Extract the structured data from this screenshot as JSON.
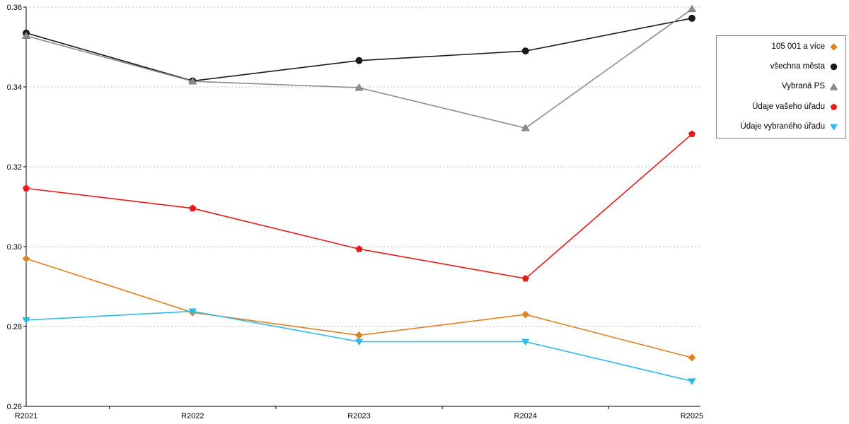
{
  "chart_data": {
    "type": "line",
    "title": "",
    "xlabel": "",
    "ylabel": "",
    "categories": [
      "R2021",
      "R2022",
      "R2023",
      "R2024",
      "R2025"
    ],
    "series": [
      {
        "name": "105 001 a více",
        "marker": "diamond",
        "color": "#E08122",
        "values": [
          0.297,
          0.2835,
          0.2778,
          0.283,
          0.2722
        ]
      },
      {
        "name": "všechna města",
        "marker": "circle",
        "color": "#1A1A1A",
        "values": [
          0.3535,
          0.3415,
          0.3466,
          0.349,
          0.3572
        ]
      },
      {
        "name": "Vybraná PS",
        "marker": "triangle-up",
        "color": "#8C8C8C",
        "values": [
          0.3528,
          0.3414,
          0.3398,
          0.3297,
          0.3595
        ]
      },
      {
        "name": "Údaje vašeho úřadu",
        "marker": "pentagon",
        "color": "#E8191C",
        "values": [
          0.3146,
          0.3096,
          0.2994,
          0.292,
          0.3282
        ]
      },
      {
        "name": "Údaje vybraného úřadu",
        "marker": "triangle-down",
        "color": "#2DB9E8",
        "values": [
          0.2816,
          0.2838,
          0.2762,
          0.2762,
          0.2663
        ]
      }
    ],
    "ylim": [
      0.26,
      0.36
    ],
    "yticks": [
      0.26,
      0.28,
      0.3,
      0.32,
      0.34,
      0.36
    ],
    "ytick_format_decimals": 2,
    "grid": "horizontal-dotted",
    "legend_position": "right"
  }
}
